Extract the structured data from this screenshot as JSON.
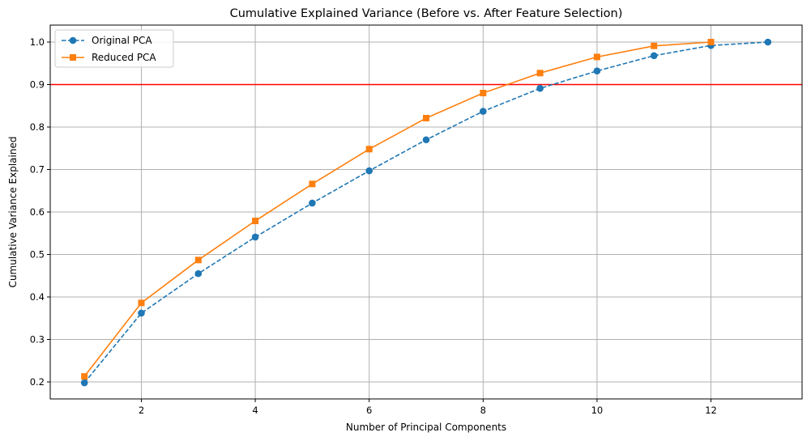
{
  "chart_data": {
    "type": "line",
    "title": "Cumulative Explained Variance (Before vs. After Feature Selection)",
    "xlabel": "Number of Principal Components",
    "ylabel": "Cumulative Variance Explained",
    "xlim": [
      0.4,
      13.6
    ],
    "ylim": [
      0.16,
      1.04
    ],
    "xticks": [
      2,
      4,
      6,
      8,
      10,
      12
    ],
    "yticks": [
      0.2,
      0.3,
      0.4,
      0.5,
      0.6,
      0.7,
      0.8,
      0.9,
      1.0
    ],
    "xtick_labels": [
      "2",
      "4",
      "6",
      "8",
      "10",
      "12"
    ],
    "ytick_labels": [
      "0.2",
      "0.3",
      "0.4",
      "0.5",
      "0.6",
      "0.7",
      "0.8",
      "0.9",
      "1.0"
    ],
    "grid": true,
    "legend_position": "top-left",
    "series": [
      {
        "name": "Original PCA",
        "color": "#1f77b4",
        "line_style": "dashed",
        "marker": "circle",
        "x": [
          1,
          2,
          3,
          4,
          5,
          6,
          7,
          8,
          9,
          10,
          11,
          12,
          13
        ],
        "y": [
          0.198,
          0.362,
          0.455,
          0.541,
          0.621,
          0.697,
          0.77,
          0.837,
          0.891,
          0.932,
          0.968,
          0.992,
          1.0
        ]
      },
      {
        "name": "Reduced PCA",
        "color": "#ff7f0e",
        "line_style": "solid",
        "marker": "square",
        "x": [
          1,
          2,
          3,
          4,
          5,
          6,
          7,
          8,
          9,
          10,
          11,
          12
        ],
        "y": [
          0.213,
          0.386,
          0.487,
          0.579,
          0.666,
          0.748,
          0.821,
          0.88,
          0.927,
          0.965,
          0.991,
          1.0
        ]
      }
    ],
    "reference_lines": [
      {
        "axis": "y",
        "value": 0.9,
        "color": "#ff0000"
      }
    ]
  }
}
